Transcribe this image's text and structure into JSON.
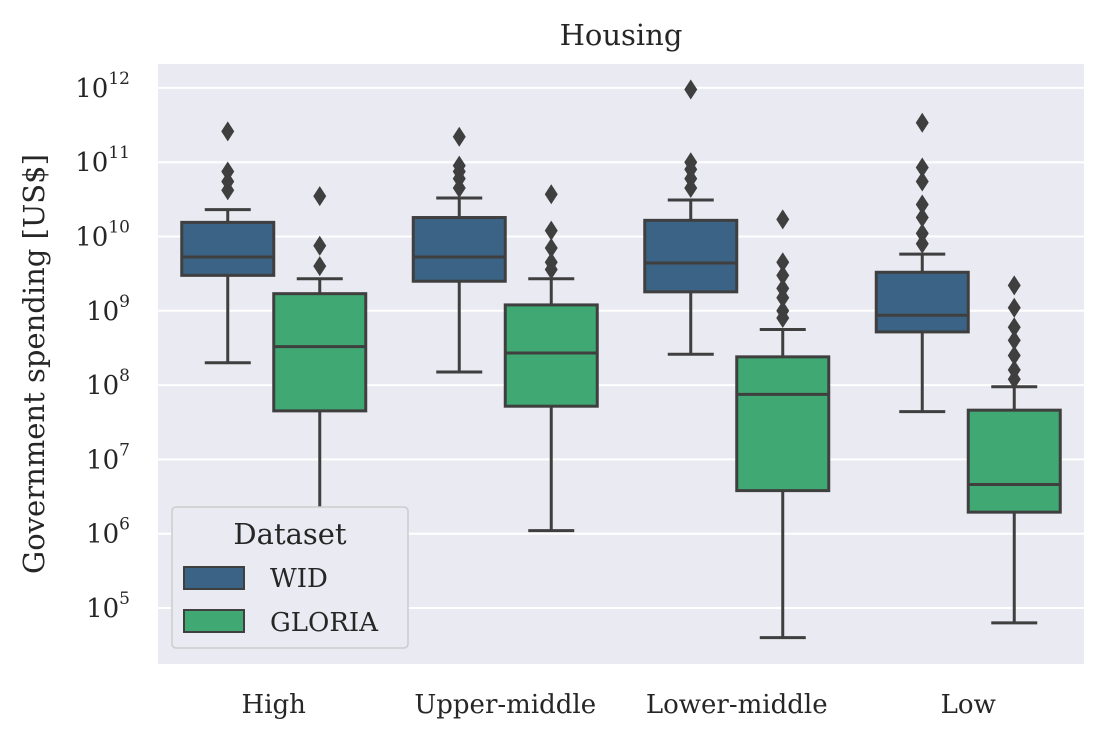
{
  "chart_data": {
    "type": "boxplot",
    "title": "Housing",
    "xlabel": "",
    "ylabel": "Government spending [US$]",
    "yscale": "log",
    "ylim": [
      15000,
      2000000000000
    ],
    "grid": true,
    "y_ticks": [
      {
        "base": "10",
        "exp": "5",
        "value": 100000
      },
      {
        "base": "10",
        "exp": "6",
        "value": 1000000
      },
      {
        "base": "10",
        "exp": "7",
        "value": 10000000
      },
      {
        "base": "10",
        "exp": "8",
        "value": 100000000
      },
      {
        "base": "10",
        "exp": "9",
        "value": 1000000000
      },
      {
        "base": "10",
        "exp": "10",
        "value": 10000000000
      },
      {
        "base": "10",
        "exp": "11",
        "value": 100000000000
      },
      {
        "base": "10",
        "exp": "12",
        "value": 1000000000000
      }
    ],
    "categories": [
      "High",
      "Upper-middle",
      "Lower-middle",
      "Low"
    ],
    "legend": {
      "title": "Dataset",
      "position": "lower-left"
    },
    "series": [
      {
        "name": "WID",
        "color": "#3b6386",
        "boxes": [
          {
            "whisker_low": 200000000,
            "q1": 3000000000,
            "median": 5300000000,
            "q3": 15500000000,
            "whisker_high": 23000000000,
            "outliers": [
              42000000000,
              55000000000,
              75000000000,
              260000000000
            ]
          },
          {
            "whisker_low": 150000000,
            "q1": 2500000000,
            "median": 5300000000,
            "q3": 18000000000,
            "whisker_high": 33000000000,
            "outliers": [
              45000000000,
              60000000000,
              75000000000,
              90000000000,
              220000000000
            ]
          },
          {
            "whisker_low": 260000000,
            "q1": 1800000000,
            "median": 4400000000,
            "q3": 16500000000,
            "whisker_high": 31000000000,
            "outliers": [
              45000000000,
              60000000000,
              80000000000,
              100000000000,
              950000000000
            ]
          },
          {
            "whisker_low": 44000000,
            "q1": 520000000,
            "median": 870000000,
            "q3": 3300000000,
            "whisker_high": 5800000000,
            "outliers": [
              8000000000,
              11000000000,
              18000000000,
              27000000000,
              55000000000,
              85000000000,
              340000000000
            ]
          }
        ]
      },
      {
        "name": "GLORIA",
        "color": "#40a873",
        "boxes": [
          {
            "whisker_low": 1500000,
            "q1": 45000000,
            "median": 330000000,
            "q3": 1700000000,
            "whisker_high": 2700000000,
            "outliers": [
              4000000000,
              7500000000,
              35000000000
            ]
          },
          {
            "whisker_low": 1100000,
            "q1": 52000000,
            "median": 270000000,
            "q3": 1200000000,
            "whisker_high": 2700000000,
            "outliers": [
              3600000000,
              4500000000,
              7000000000,
              12000000000,
              37000000000
            ]
          },
          {
            "whisker_low": 40000,
            "q1": 3800000,
            "median": 75000000,
            "q3": 240000000,
            "whisker_high": 560000000,
            "outliers": [
              800000000,
              1000000000,
              1500000000,
              2000000000,
              3000000000,
              4500000000,
              17000000000
            ]
          },
          {
            "whisker_low": 63000,
            "q1": 1950000,
            "median": 4600000,
            "q3": 46000000,
            "whisker_high": 95000000,
            "outliers": [
              120000000,
              160000000,
              250000000,
              400000000,
              600000000,
              1100000000,
              2200000000
            ]
          }
        ]
      }
    ]
  }
}
